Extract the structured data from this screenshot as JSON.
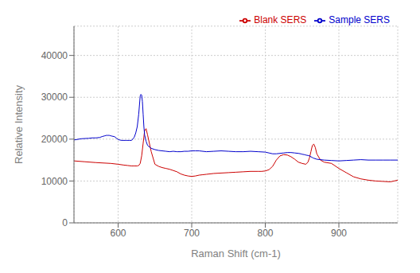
{
  "chart_data": {
    "type": "line",
    "xlabel": "Raman Shift (cm-1)",
    "ylabel": "Relative Intensity",
    "xlim": [
      540,
      980
    ],
    "ylim": [
      0,
      47000
    ],
    "xticks": [
      600,
      700,
      800,
      900
    ],
    "yticks": [
      0,
      10000,
      20000,
      30000,
      40000
    ],
    "grid": true,
    "legend": "upper right",
    "series": [
      {
        "name": "Blank SERS",
        "color": "#cc0000",
        "x": [
          540,
          555,
          570,
          580,
          590,
          600,
          608,
          613,
          618,
          622,
          626,
          628,
          630,
          632,
          634,
          636,
          638,
          640,
          645,
          650,
          655,
          660,
          665,
          670,
          675,
          680,
          685,
          690,
          695,
          700,
          705,
          710,
          715,
          720,
          730,
          740,
          750,
          760,
          770,
          780,
          790,
          795,
          800,
          805,
          810,
          815,
          820,
          825,
          830,
          835,
          840,
          845,
          850,
          855,
          858,
          860,
          862,
          864,
          866,
          868,
          870,
          875,
          880,
          890,
          900,
          910,
          920,
          930,
          940,
          950,
          960,
          970,
          980
        ],
        "values": [
          14800,
          14600,
          14400,
          14300,
          14200,
          14000,
          13800,
          13700,
          13600,
          13600,
          13600,
          13700,
          14200,
          16000,
          19000,
          22000,
          22500,
          21000,
          17000,
          14000,
          13500,
          13200,
          13000,
          12800,
          12500,
          12200,
          11700,
          11400,
          11200,
          11100,
          11200,
          11400,
          11500,
          11600,
          11800,
          11900,
          12000,
          12100,
          12200,
          12300,
          12300,
          12300,
          12400,
          12700,
          13500,
          15000,
          16000,
          16300,
          16200,
          15800,
          15200,
          14500,
          14200,
          14000,
          14500,
          15500,
          17000,
          18500,
          18800,
          18000,
          16500,
          15000,
          14500,
          14200,
          13000,
          12000,
          11000,
          10500,
          10200,
          10000,
          9900,
          9800,
          10200
        ]
      },
      {
        "name": "Sample SERS",
        "color": "#0000cc",
        "x": [
          540,
          550,
          560,
          565,
          570,
          575,
          578,
          580,
          582,
          584,
          586,
          588,
          590,
          592,
          595,
          598,
          600,
          602,
          605,
          608,
          610,
          612,
          615,
          618,
          620,
          622,
          624,
          626,
          628,
          630,
          631,
          632,
          633,
          634,
          635,
          636,
          638,
          640,
          645,
          650,
          655,
          660,
          665,
          670,
          675,
          680,
          685,
          690,
          695,
          700,
          705,
          710,
          720,
          730,
          740,
          750,
          760,
          770,
          780,
          790,
          800,
          805,
          810,
          815,
          820,
          825,
          830,
          835,
          840,
          845,
          848,
          850,
          853,
          855,
          858,
          860,
          865,
          870,
          880,
          890,
          900,
          910,
          920,
          930,
          940,
          950,
          960,
          970,
          980
        ],
        "values": [
          19800,
          20100,
          20200,
          20300,
          20300,
          20400,
          20600,
          20700,
          20800,
          20900,
          20900,
          20900,
          20800,
          20700,
          20600,
          20200,
          19900,
          19800,
          19700,
          19700,
          19700,
          19700,
          19700,
          19700,
          20000,
          20500,
          21500,
          23000,
          26000,
          30300,
          30700,
          30500,
          29000,
          26000,
          23000,
          21000,
          19500,
          18500,
          17800,
          17500,
          17300,
          17200,
          17100,
          17000,
          17100,
          17000,
          17000,
          17100,
          17100,
          17200,
          17200,
          17200,
          17000,
          17100,
          17200,
          17100,
          17000,
          17000,
          17100,
          17000,
          16900,
          16700,
          16500,
          16500,
          16600,
          16700,
          16800,
          16800,
          16700,
          16600,
          16500,
          16400,
          16300,
          16200,
          16100,
          16000,
          15500,
          15200,
          15000,
          14900,
          14800,
          14900,
          15000,
          15100,
          15000,
          15000,
          15000,
          15000,
          15000
        ]
      }
    ]
  }
}
